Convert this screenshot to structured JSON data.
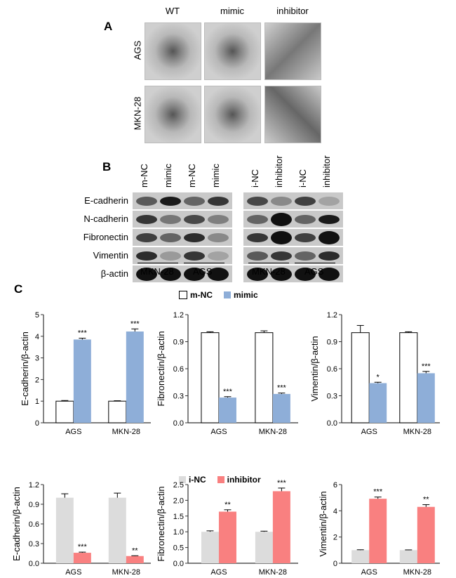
{
  "panelA": {
    "label": "A",
    "columns": [
      "WT",
      "mimic",
      "inhibitor"
    ],
    "rows": [
      "AGS",
      "MKN-28"
    ]
  },
  "panelB": {
    "label": "B",
    "left_lanes": [
      "m-NC",
      "mimic",
      "m-NC",
      "mimic"
    ],
    "right_lanes": [
      "i-NC",
      "inhibitor",
      "i-NC",
      "inhibitor"
    ],
    "proteins": [
      "E-cadherin",
      "N-cadherin",
      "Fibronectin",
      "Vimentin",
      "β-actin"
    ],
    "left_intensity": [
      [
        0.6,
        0.95,
        0.55,
        0.8
      ],
      [
        0.8,
        0.45,
        0.7,
        0.4
      ],
      [
        0.75,
        0.55,
        0.85,
        0.35
      ],
      [
        0.85,
        0.25,
        0.8,
        0.2
      ],
      [
        1,
        1,
        1,
        1
      ]
    ],
    "right_intensity": [
      [
        0.7,
        0.35,
        0.75,
        0.2
      ],
      [
        0.55,
        1,
        0.55,
        0.95
      ],
      [
        0.8,
        1,
        0.75,
        1
      ],
      [
        0.6,
        0.8,
        0.55,
        0.85
      ],
      [
        1,
        1,
        1,
        1
      ]
    ],
    "cell_lines": [
      "MKN-28",
      "AGS"
    ]
  },
  "panelC": {
    "label": "C",
    "legend_top": [
      "m-NC",
      "mimic"
    ],
    "legend_bottom": [
      "i-NC",
      "inhibitor"
    ]
  },
  "colors": {
    "mNC": "#ffffff",
    "mimic": "#8eaed8",
    "iNC": "#dcdcdc",
    "inhibitor": "#f98080"
  },
  "chart_data": [
    {
      "type": "bar",
      "ylabel": "E-cadherin/β-actin",
      "categories": [
        "AGS",
        "MKN-28"
      ],
      "ylim": [
        0,
        5
      ],
      "ticks": [
        "0",
        "1",
        "2",
        "3",
        "4",
        "5"
      ],
      "tickvals": [
        0,
        1,
        2,
        3,
        4,
        5
      ],
      "series": [
        {
          "name": "m-NC",
          "values": [
            1.0,
            1.0
          ],
          "err": [
            0.03,
            0.02
          ],
          "stars": [
            "",
            ""
          ]
        },
        {
          "name": "mimic",
          "values": [
            3.85,
            4.22
          ],
          "err": [
            0.06,
            0.12
          ],
          "stars": [
            "***",
            "***"
          ]
        }
      ]
    },
    {
      "type": "bar",
      "ylabel": "Fibronectin/β-actin",
      "categories": [
        "AGS",
        "MKN-28"
      ],
      "ylim": [
        0,
        1.2
      ],
      "ticks": [
        "0.0",
        "0.3",
        "0.6",
        "0.9",
        "1.2"
      ],
      "tickvals": [
        0,
        0.3,
        0.6,
        0.9,
        1.2
      ],
      "series": [
        {
          "name": "m-NC",
          "values": [
            1.0,
            1.0
          ],
          "err": [
            0.01,
            0.02
          ],
          "stars": [
            "",
            ""
          ]
        },
        {
          "name": "mimic",
          "values": [
            0.28,
            0.32
          ],
          "err": [
            0.01,
            0.01
          ],
          "stars": [
            "***",
            "***"
          ]
        }
      ]
    },
    {
      "type": "bar",
      "ylabel": "Vimentin/β-actin",
      "categories": [
        "AGS",
        "MKN-28"
      ],
      "ylim": [
        0,
        1.2
      ],
      "ticks": [
        "0.0",
        "0.3",
        "0.6",
        "0.9",
        "1.2"
      ],
      "tickvals": [
        0,
        0.3,
        0.6,
        0.9,
        1.2
      ],
      "series": [
        {
          "name": "m-NC",
          "values": [
            1.0,
            1.0
          ],
          "err": [
            0.08,
            0.01
          ],
          "stars": [
            "",
            ""
          ]
        },
        {
          "name": "mimic",
          "values": [
            0.44,
            0.55
          ],
          "err": [
            0.01,
            0.02
          ],
          "stars": [
            "*",
            "***"
          ]
        }
      ]
    },
    {
      "type": "bar",
      "ylabel": "E-cadherin/β-actin",
      "categories": [
        "AGS",
        "MKN-28"
      ],
      "ylim": [
        0,
        1.2
      ],
      "ticks": [
        "0.0",
        "0.3",
        "0.6",
        "0.9",
        "1.2"
      ],
      "tickvals": [
        0,
        0.3,
        0.6,
        0.9,
        1.2
      ],
      "series": [
        {
          "name": "i-NC",
          "values": [
            1.0,
            1.0
          ],
          "err": [
            0.06,
            0.07
          ],
          "stars": [
            "",
            ""
          ]
        },
        {
          "name": "inhibitor",
          "values": [
            0.16,
            0.11
          ],
          "err": [
            0.01,
            0.005
          ],
          "stars": [
            "***",
            "**"
          ]
        }
      ]
    },
    {
      "type": "bar",
      "ylabel": "Fibronectin/β-actin",
      "categories": [
        "AGS",
        "MKN-28"
      ],
      "ylim": [
        0,
        2.5
      ],
      "ticks": [
        "0.0",
        "0.5",
        "1.0",
        "1.5",
        "2.0",
        "2.5"
      ],
      "tickvals": [
        0,
        0.5,
        1,
        1.5,
        2,
        2.5
      ],
      "series": [
        {
          "name": "i-NC",
          "values": [
            1.0,
            1.0
          ],
          "err": [
            0.03,
            0.02
          ],
          "stars": [
            "",
            ""
          ]
        },
        {
          "name": "inhibitor",
          "values": [
            1.64,
            2.29
          ],
          "err": [
            0.06,
            0.1
          ],
          "stars": [
            "**",
            "***"
          ]
        }
      ]
    },
    {
      "type": "bar",
      "ylabel": "Vimentin/β-actin",
      "categories": [
        "AGS",
        "MKN-28"
      ],
      "ylim": [
        0,
        6
      ],
      "ticks": [
        "0",
        "2",
        "4",
        "6"
      ],
      "tickvals": [
        0,
        2,
        4,
        6
      ],
      "series": [
        {
          "name": "i-NC",
          "values": [
            1.0,
            1.0
          ],
          "err": [
            0.03,
            0.02
          ],
          "stars": [
            "",
            ""
          ]
        },
        {
          "name": "inhibitor",
          "values": [
            4.92,
            4.3
          ],
          "err": [
            0.13,
            0.17
          ],
          "stars": [
            "***",
            "**"
          ]
        }
      ]
    }
  ]
}
